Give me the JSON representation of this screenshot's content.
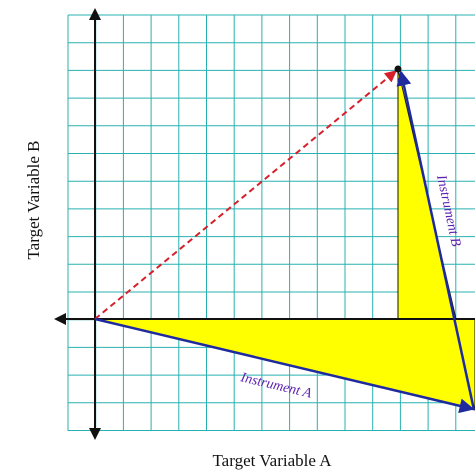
{
  "diagram": {
    "x_axis_label": "Target Variable A",
    "y_axis_label": "Target Variable B",
    "instrument_a_label": "Instrument A",
    "instrument_b_label": "Instrument B"
  },
  "colors": {
    "background": "#ffffff",
    "grid": "#29b0b0",
    "axis": "#111111",
    "instrument_vector": "#1f2a9e",
    "instrument_label": "#5a1fb0",
    "combined_vector": "#d61f2a",
    "shaded_region": "#ffff00",
    "shaded_outline": "#111111"
  }
}
